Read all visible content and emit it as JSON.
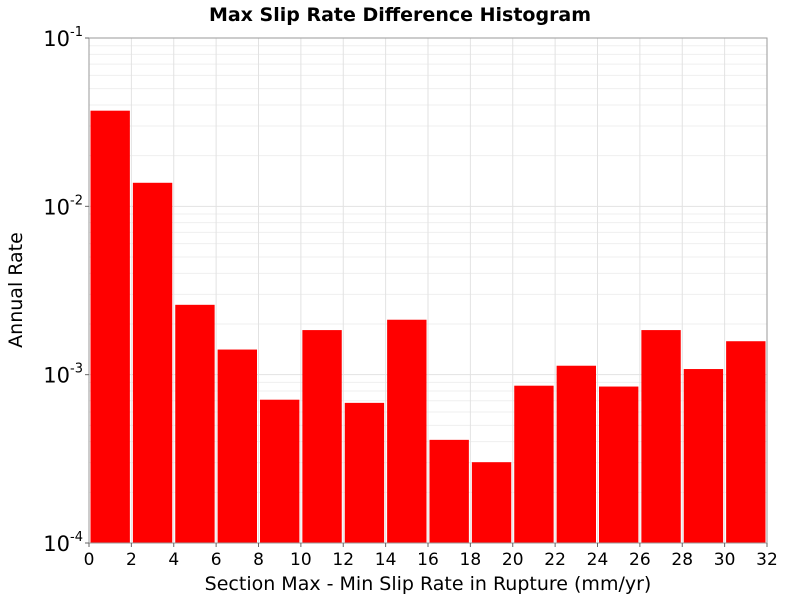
{
  "chart_data": {
    "type": "bar",
    "title": "Max Slip Rate Difference Histogram",
    "xlabel": "Section Max - Min Slip Rate in Rupture (mm/yr)",
    "ylabel": "Annual Rate",
    "xlim": [
      0,
      32
    ],
    "ylim": [
      0.0001,
      0.1
    ],
    "yscale": "log",
    "grid": true,
    "bar_color": "#ff0000",
    "bin_width": 2,
    "x": [
      1,
      3,
      5,
      7,
      9,
      11,
      13,
      15,
      17,
      19,
      21,
      23,
      25,
      27,
      29,
      31
    ],
    "values": [
      0.037,
      0.0138,
      0.0026,
      0.00141,
      0.00071,
      0.00184,
      0.00068,
      0.00212,
      0.00041,
      0.000302,
      0.00086,
      0.00113,
      0.00085,
      0.00184,
      0.00108,
      0.00158
    ],
    "xticks": [
      "0",
      "2",
      "4",
      "6",
      "8",
      "10",
      "12",
      "14",
      "16",
      "18",
      "20",
      "22",
      "24",
      "26",
      "28",
      "30",
      "32"
    ],
    "yticks": [
      {
        "base": "10",
        "exp": "-1"
      },
      {
        "base": "10",
        "exp": "-2"
      },
      {
        "base": "10",
        "exp": "-3"
      },
      {
        "base": "10",
        "exp": "-4"
      }
    ]
  }
}
